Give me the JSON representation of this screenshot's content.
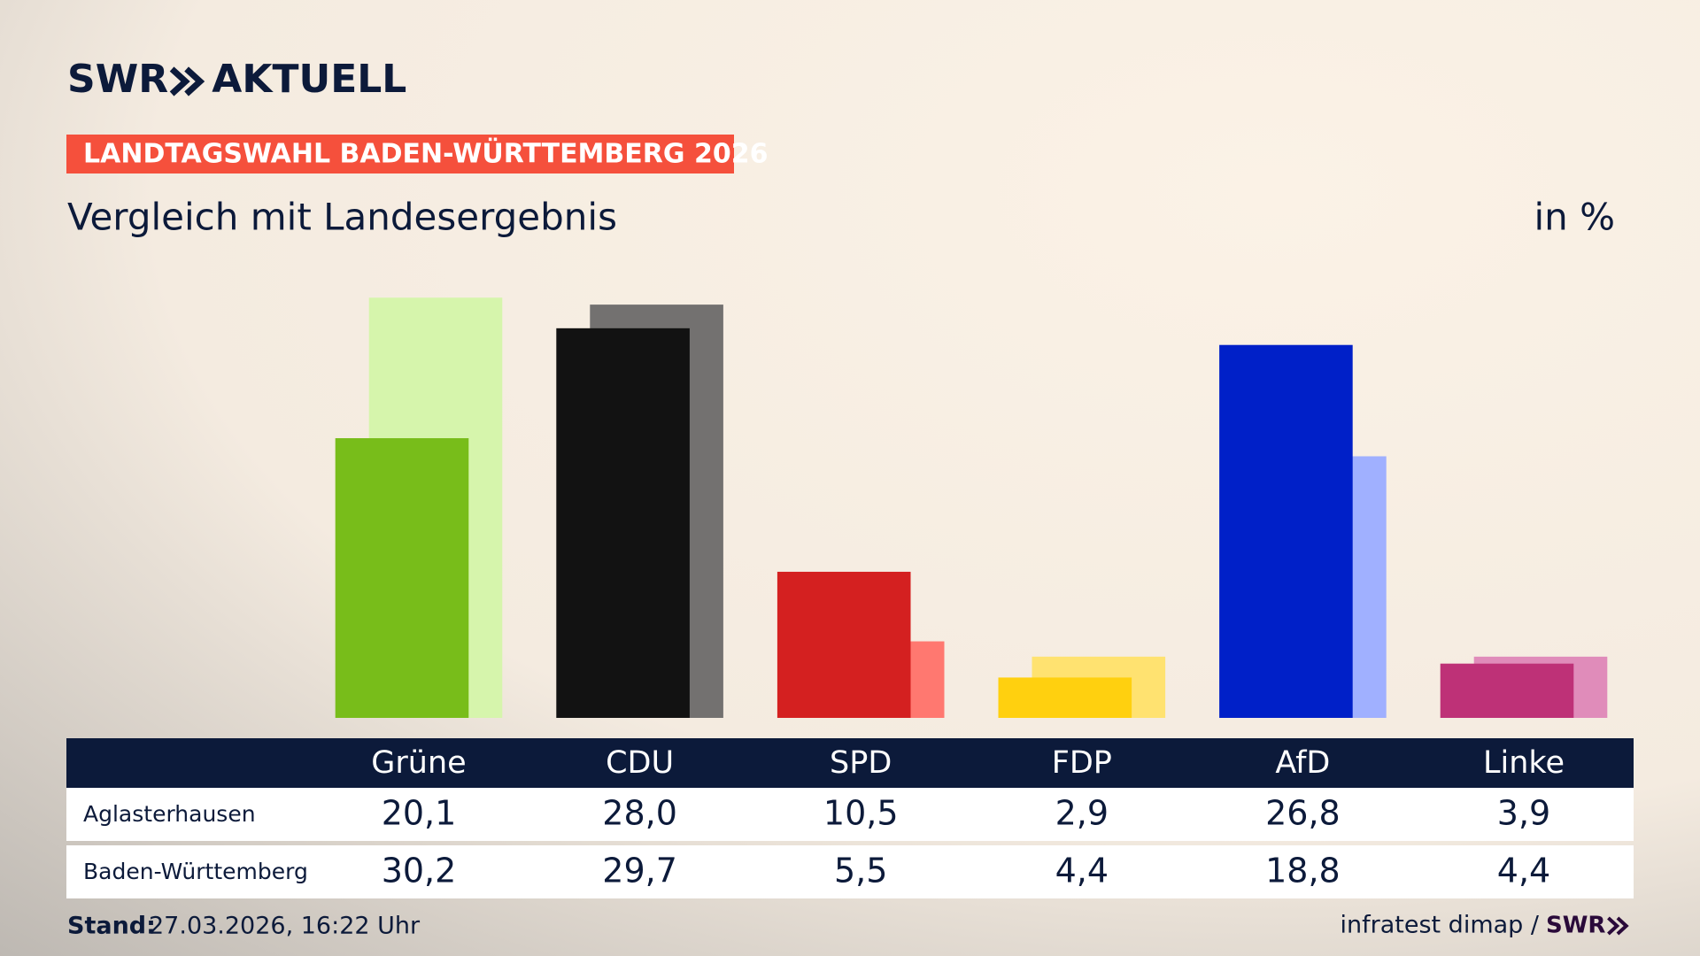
{
  "brand": {
    "name": "SWR",
    "product": "AKTUELL"
  },
  "banner": "LANDTAGSWAHL BADEN-WÜRTTEMBERG 2026",
  "footer": {
    "label": "Stand:",
    "date": "27.03.2026, 16:22 Uhr",
    "source": "infratest dimap /",
    "source_brand": "SWR"
  },
  "chart_data": {
    "type": "bar",
    "title": "Vergleich mit Landesergebnis",
    "unit": "in %",
    "categories": [
      "Grüne",
      "CDU",
      "SPD",
      "FDP",
      "AfD",
      "Linke"
    ],
    "series": [
      {
        "name": "Aglasterhausen",
        "values": [
          20.1,
          28.0,
          10.5,
          2.9,
          26.8,
          3.9
        ],
        "value_labels": [
          "20,1",
          "28,0",
          "10,5",
          "2,9",
          "26,8",
          "3,9"
        ],
        "colors": [
          "#78bd1a",
          "#121212",
          "#d42020",
          "#ffd00f",
          "#0020c8",
          "#be3177"
        ]
      },
      {
        "name": "Baden-Württemberg",
        "values": [
          30.2,
          29.7,
          5.5,
          4.4,
          18.8,
          4.4
        ],
        "value_labels": [
          "30,2",
          "29,7",
          "5,5",
          "4,4",
          "18,8",
          "4,4"
        ],
        "colors": [
          "#d6f5ac",
          "#737170",
          "#ff7870",
          "#ffe270",
          "#a0b0ff",
          "#e08cba"
        ]
      }
    ]
  }
}
